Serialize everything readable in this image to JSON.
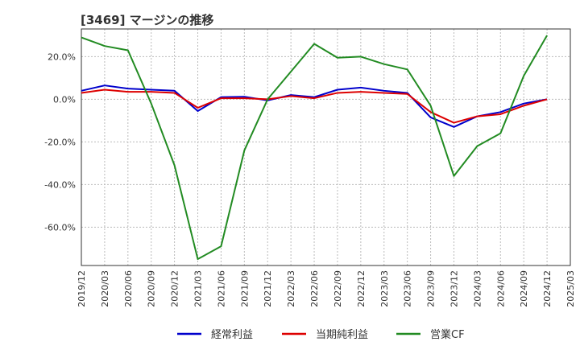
{
  "chart_data": {
    "type": "line",
    "title": "[3469]  マージンの推移",
    "xlabel": "",
    "ylabel": "",
    "x": [
      "2019/12",
      "2020/03",
      "2020/06",
      "2020/09",
      "2020/12",
      "2021/03",
      "2021/06",
      "2021/09",
      "2021/12",
      "2022/03",
      "2022/06",
      "2022/09",
      "2022/12",
      "2023/03",
      "2023/06",
      "2023/09",
      "2023/12",
      "2024/03",
      "2024/06",
      "2024/09",
      "2024/12"
    ],
    "x_tick_labels": [
      "2019/12",
      "2020/03",
      "2020/06",
      "2020/09",
      "2020/12",
      "2021/03",
      "2021/06",
      "2021/09",
      "2021/12",
      "2022/03",
      "2022/06",
      "2022/09",
      "2022/12",
      "2023/03",
      "2023/06",
      "2023/09",
      "2023/12",
      "2024/03",
      "2024/06",
      "2024/09",
      "2024/12",
      "2025/03"
    ],
    "y_ticks": [
      20,
      0,
      -20,
      -40,
      -60
    ],
    "y_tick_labels": [
      "20.0%",
      "0.0%",
      "-20.0%",
      "-40.0%",
      "-60.0%"
    ],
    "ylim": [
      -78,
      33
    ],
    "grid": true,
    "legend_position": "bottom",
    "series": [
      {
        "name": "経常利益",
        "color": "#0000cc",
        "values": [
          4,
          6.5,
          5,
          4.5,
          4,
          -5.5,
          1,
          1.2,
          -0.5,
          2,
          1,
          4.5,
          5.5,
          4,
          3,
          -8.5,
          -13,
          -8,
          -6,
          -2,
          0
        ]
      },
      {
        "name": "当期純利益",
        "color": "#dd0000",
        "values": [
          3,
          4.5,
          3.5,
          3.5,
          3,
          -4,
          0.5,
          0.5,
          0,
          1.5,
          0.5,
          3,
          3.5,
          3,
          2.5,
          -6,
          -11,
          -8,
          -7,
          -3,
          0
        ]
      },
      {
        "name": "営業CF",
        "color": "#228b22",
        "values": [
          29,
          25,
          23,
          -2,
          -31,
          -75,
          -69,
          -24,
          0,
          13,
          26,
          19.5,
          20,
          16.5,
          14,
          -3,
          -36,
          -22,
          -16,
          11,
          30
        ]
      }
    ]
  }
}
